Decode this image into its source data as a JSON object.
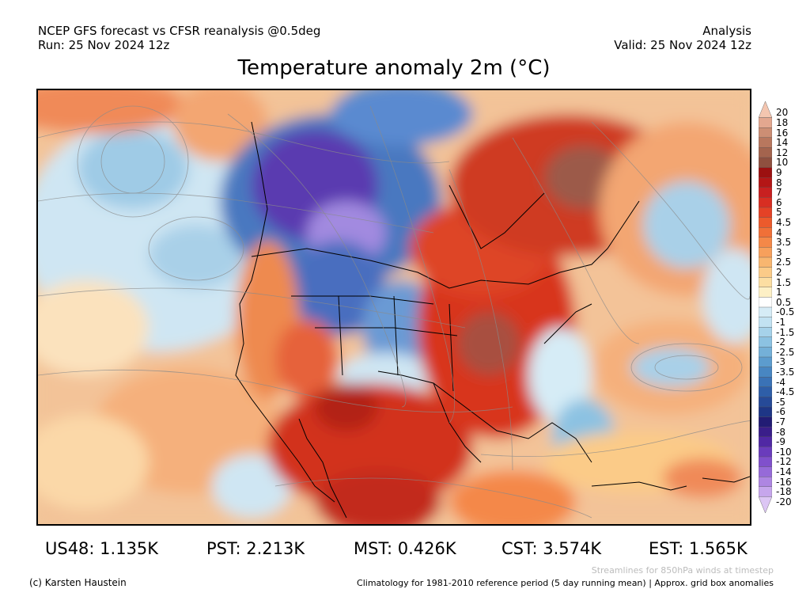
{
  "header": {
    "source_line": "NCEP GFS forecast vs CFSR reanalysis @0.5deg",
    "run_line": "Run: 25 Nov 2024 12z",
    "mode": "Analysis",
    "valid_line": "Valid: 25 Nov 2024 12z"
  },
  "title": "Temperature anomaly 2m (°C)",
  "colorbar": {
    "labels": [
      "20",
      "18",
      "16",
      "14",
      "12",
      "10",
      "9",
      "8",
      "7",
      "6",
      "5",
      "4.5",
      "4",
      "3.5",
      "3",
      "2.5",
      "2",
      "1.5",
      "1",
      "0.5",
      "-0.5",
      "-1",
      "-1.5",
      "-2",
      "-2.5",
      "-3",
      "-3.5",
      "-4",
      "-4.5",
      "-5",
      "-6",
      "-7",
      "-8",
      "-9",
      "-10",
      "-12",
      "-14",
      "-16",
      "-18",
      "-20"
    ],
    "colors": [
      "#f4c6b0",
      "#e3a78f",
      "#cc8e74",
      "#b8775e",
      "#a4644e",
      "#8f503f",
      "#9c1010",
      "#b41616",
      "#c82020",
      "#d82e22",
      "#e44226",
      "#ec5a2c",
      "#f07038",
      "#f48848",
      "#f7a05c",
      "#f8b670",
      "#fbcb88",
      "#fcdea2",
      "#fdf0c6",
      "#ffffff",
      "#d6ecf6",
      "#c2e2f2",
      "#a6d2ea",
      "#8cc2e2",
      "#74b0d8",
      "#5c9cce",
      "#4886c2",
      "#3a72b6",
      "#2e5ea8",
      "#264a98",
      "#1e3686",
      "#221c74",
      "#3a1e8a",
      "#5028a4",
      "#6a3cbc",
      "#8050cc",
      "#966ad8",
      "#ae86e2",
      "#c6a6ec",
      "#dcc6f4"
    ]
  },
  "stats": [
    {
      "label": "US48: 1.135K"
    },
    {
      "label": "PST: 2.213K"
    },
    {
      "label": "MST: 0.426K"
    },
    {
      "label": "CST: 3.574K"
    },
    {
      "label": "EST: 1.565K"
    }
  ],
  "footer": {
    "credit": "(c) Karsten Haustein",
    "streamline_note": "Streamlines for 850hPa winds at timestep",
    "climatology_note": "Climatology for 1981-2010 reference period (5 day running mean) | Approx. grid box anomalies"
  }
}
